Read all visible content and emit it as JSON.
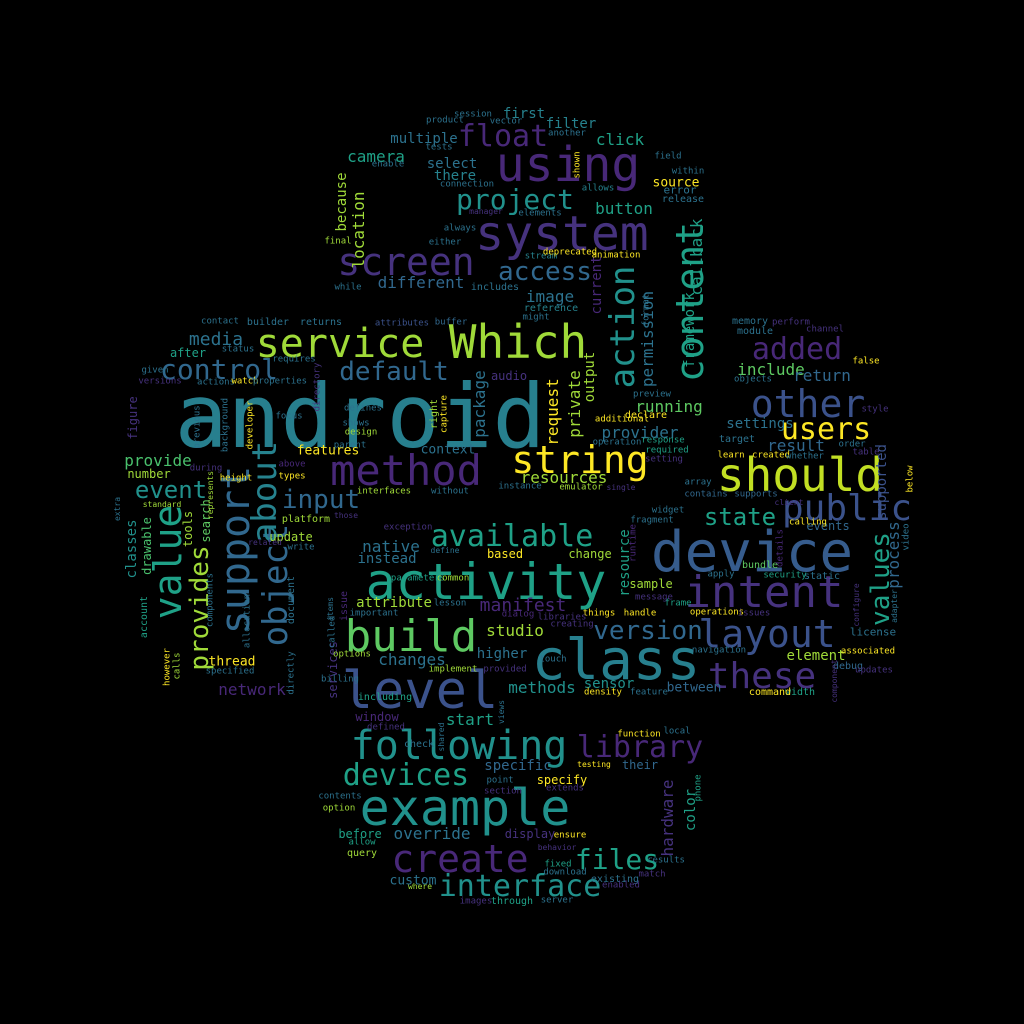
{
  "words": [
    {
      "t": "android"
    },
    {
      "t": "device"
    },
    {
      "t": "activity"
    },
    {
      "t": "class"
    },
    {
      "t": "using"
    },
    {
      "t": "system"
    },
    {
      "t": "Which"
    },
    {
      "t": "service"
    },
    {
      "t": "screen"
    },
    {
      "t": "method"
    },
    {
      "t": "should"
    },
    {
      "t": "build"
    },
    {
      "t": "level"
    },
    {
      "t": "example"
    },
    {
      "t": "following"
    },
    {
      "t": "create"
    },
    {
      "t": "intent"
    },
    {
      "t": "layout"
    },
    {
      "t": "these"
    },
    {
      "t": "string"
    },
    {
      "t": "support"
    },
    {
      "t": "value"
    },
    {
      "t": "object"
    },
    {
      "t": "about"
    },
    {
      "t": "content"
    },
    {
      "t": "action"
    },
    {
      "t": "public"
    },
    {
      "t": "other"
    },
    {
      "t": "added"
    },
    {
      "t": "users"
    },
    {
      "t": "available"
    },
    {
      "t": "devices"
    },
    {
      "t": "interface"
    },
    {
      "t": "library"
    },
    {
      "t": "files"
    },
    {
      "t": "float"
    },
    {
      "t": "project"
    },
    {
      "t": "access"
    },
    {
      "t": "control"
    },
    {
      "t": "default"
    },
    {
      "t": "input"
    },
    {
      "t": "event"
    },
    {
      "t": "provides"
    },
    {
      "t": "values"
    },
    {
      "t": "version"
    },
    {
      "t": "state"
    },
    {
      "t": "manifest"
    },
    {
      "t": "media"
    },
    {
      "t": "camera"
    },
    {
      "t": "location"
    },
    {
      "t": "different"
    },
    {
      "t": "image"
    },
    {
      "t": "button"
    },
    {
      "t": "click"
    },
    {
      "t": "filter"
    },
    {
      "t": "first"
    },
    {
      "t": "multiple"
    },
    {
      "t": "select"
    },
    {
      "t": "there"
    },
    {
      "t": "because"
    },
    {
      "t": "source"
    },
    {
      "t": "permission"
    },
    {
      "t": "callback"
    },
    {
      "t": "framework"
    },
    {
      "t": "private"
    },
    {
      "t": "request"
    },
    {
      "t": "package"
    },
    {
      "t": "output"
    },
    {
      "t": "current"
    },
    {
      "t": "running"
    },
    {
      "t": "provider"
    },
    {
      "t": "resources"
    },
    {
      "t": "include"
    },
    {
      "t": "return"
    },
    {
      "t": "settings"
    },
    {
      "t": "result"
    },
    {
      "t": "provide"
    },
    {
      "t": "classes"
    },
    {
      "t": "drawable"
    },
    {
      "t": "tools"
    },
    {
      "t": "search"
    },
    {
      "t": "features"
    },
    {
      "t": "context"
    },
    {
      "t": "native"
    },
    {
      "t": "instead"
    },
    {
      "t": "attribute"
    },
    {
      "t": "changes"
    },
    {
      "t": "studio"
    },
    {
      "t": "higher"
    },
    {
      "t": "methods"
    },
    {
      "t": "sensor"
    },
    {
      "t": "between"
    },
    {
      "t": "element"
    },
    {
      "t": "network"
    },
    {
      "t": "thread"
    },
    {
      "t": "after"
    },
    {
      "t": "window"
    },
    {
      "t": "start"
    },
    {
      "t": "specific"
    },
    {
      "t": "specify"
    },
    {
      "t": "override"
    },
    {
      "t": "display"
    },
    {
      "t": "custom"
    },
    {
      "t": "hardware"
    },
    {
      "t": "color"
    },
    {
      "t": "their"
    },
    {
      "t": "change"
    },
    {
      "t": "based"
    },
    {
      "t": "resource"
    },
    {
      "t": "sample"
    },
    {
      "t": "process"
    },
    {
      "t": "supported"
    },
    {
      "t": "events"
    },
    {
      "t": "license"
    },
    {
      "t": "update"
    },
    {
      "t": "audio"
    },
    {
      "t": "through"
    },
    {
      "t": "before"
    },
    {
      "t": "query"
    },
    {
      "t": "services"
    },
    {
      "t": "check"
    },
    {
      "t": "figure"
    },
    {
      "t": "number"
    },
    {
      "t": "account"
    },
    {
      "t": "platform"
    },
    {
      "t": "document"
    },
    {
      "t": "static"
    },
    {
      "t": "bundle"
    },
    {
      "t": "width"
    },
    {
      "t": "command"
    },
    {
      "t": "debug"
    },
    {
      "t": "memory"
    },
    {
      "t": "module"
    },
    {
      "t": "objects"
    },
    {
      "t": "target"
    },
    {
      "t": "contains"
    },
    {
      "t": "supports"
    },
    {
      "t": "widget"
    },
    {
      "t": "builder"
    },
    {
      "t": "returns"
    },
    {
      "t": "buffer"
    },
    {
      "t": "animation"
    },
    {
      "t": "stream"
    },
    {
      "t": "includes"
    },
    {
      "t": "reference"
    },
    {
      "t": "might"
    },
    {
      "t": "while"
    },
    {
      "t": "final"
    },
    {
      "t": "either"
    },
    {
      "t": "always"
    },
    {
      "t": "manager"
    },
    {
      "t": "elements"
    },
    {
      "t": "allows"
    },
    {
      "t": "error"
    },
    {
      "t": "release"
    },
    {
      "t": "field"
    },
    {
      "t": "within"
    },
    {
      "t": "another"
    },
    {
      "t": "session"
    },
    {
      "t": "product"
    },
    {
      "t": "vector"
    },
    {
      "t": "tests"
    },
    {
      "t": "enable"
    },
    {
      "t": "shown"
    },
    {
      "t": "connection"
    },
    {
      "t": "contact"
    },
    {
      "t": "attributes"
    },
    {
      "t": "status"
    },
    {
      "t": "actions"
    },
    {
      "t": "watch"
    },
    {
      "t": "properties"
    },
    {
      "t": "versions"
    },
    {
      "t": "given"
    },
    {
      "t": "requires"
    },
    {
      "t": "directory"
    },
    {
      "t": "focus"
    },
    {
      "t": "shows"
    },
    {
      "t": "design"
    },
    {
      "t": "defines"
    },
    {
      "t": "right"
    },
    {
      "t": "capture"
    },
    {
      "t": "additional"
    },
    {
      "t": "declare"
    },
    {
      "t": "preview"
    },
    {
      "t": "format"
    },
    {
      "t": "operation"
    },
    {
      "t": "response"
    },
    {
      "t": "required"
    },
    {
      "t": "setting"
    },
    {
      "t": "created"
    },
    {
      "t": "whether"
    },
    {
      "t": "learn"
    },
    {
      "t": "parent"
    },
    {
      "t": "above"
    },
    {
      "t": "types"
    },
    {
      "t": "height"
    },
    {
      "t": "during"
    },
    {
      "t": "background"
    },
    {
      "t": "developer"
    },
    {
      "t": "previous"
    },
    {
      "t": "represents"
    },
    {
      "t": "standard"
    },
    {
      "t": "extra"
    },
    {
      "t": "interfaces"
    },
    {
      "t": "without"
    },
    {
      "t": "instance"
    },
    {
      "t": "emulator"
    },
    {
      "t": "single"
    },
    {
      "t": "array"
    },
    {
      "t": "those"
    },
    {
      "t": "related"
    },
    {
      "t": "write"
    },
    {
      "t": "exception"
    },
    {
      "t": "define"
    },
    {
      "t": "parameters"
    },
    {
      "t": "common"
    },
    {
      "t": "lesson"
    },
    {
      "t": "issue"
    },
    {
      "t": "fragment"
    },
    {
      "t": "frame"
    },
    {
      "t": "message"
    },
    {
      "t": "handle"
    },
    {
      "t": "operations"
    },
    {
      "t": "things"
    },
    {
      "t": "apply"
    },
    {
      "t": "security"
    },
    {
      "t": "navigation"
    },
    {
      "t": "dialog"
    },
    {
      "t": "libraries"
    },
    {
      "t": "creating"
    },
    {
      "t": "runtime"
    },
    {
      "t": "calling"
    },
    {
      "t": "issues"
    },
    {
      "t": "false"
    },
    {
      "t": "style"
    },
    {
      "t": "order"
    },
    {
      "t": "table"
    },
    {
      "t": "below"
    },
    {
      "t": "video"
    },
    {
      "t": "adapter"
    },
    {
      "t": "configure"
    },
    {
      "t": "associated"
    },
    {
      "t": "updates"
    },
    {
      "t": "details"
    },
    {
      "t": "client"
    },
    {
      "t": "channel"
    },
    {
      "t": "perform"
    },
    {
      "t": "however"
    },
    {
      "t": "calls"
    },
    {
      "t": "components"
    },
    {
      "t": "allocation"
    },
    {
      "t": "directly"
    },
    {
      "t": "specified"
    },
    {
      "t": "called"
    },
    {
      "t": "options"
    },
    {
      "t": "billing"
    },
    {
      "t": "items"
    },
    {
      "t": "important"
    },
    {
      "t": "including"
    },
    {
      "t": "implement"
    },
    {
      "t": "provided"
    },
    {
      "t": "touch"
    },
    {
      "t": "views"
    },
    {
      "t": "density"
    },
    {
      "t": "feature"
    },
    {
      "t": "component"
    },
    {
      "t": "local"
    },
    {
      "t": "function"
    },
    {
      "t": "testing"
    },
    {
      "t": "defined"
    },
    {
      "t": "shared"
    },
    {
      "t": "point"
    },
    {
      "t": "section"
    },
    {
      "t": "extends"
    },
    {
      "t": "contents"
    },
    {
      "t": "option"
    },
    {
      "t": "ensure"
    },
    {
      "t": "allow"
    },
    {
      "t": "behavior"
    },
    {
      "t": "fixed"
    },
    {
      "t": "download"
    },
    {
      "t": "existing"
    },
    {
      "t": "where"
    },
    {
      "t": "enabled"
    },
    {
      "t": "server"
    },
    {
      "t": "images"
    },
    {
      "t": "match"
    },
    {
      "t": "results"
    },
    {
      "t": "phone"
    },
    {
      "t": "deprecated"
    },
    {
      "t": "store"
    }
  ]
}
